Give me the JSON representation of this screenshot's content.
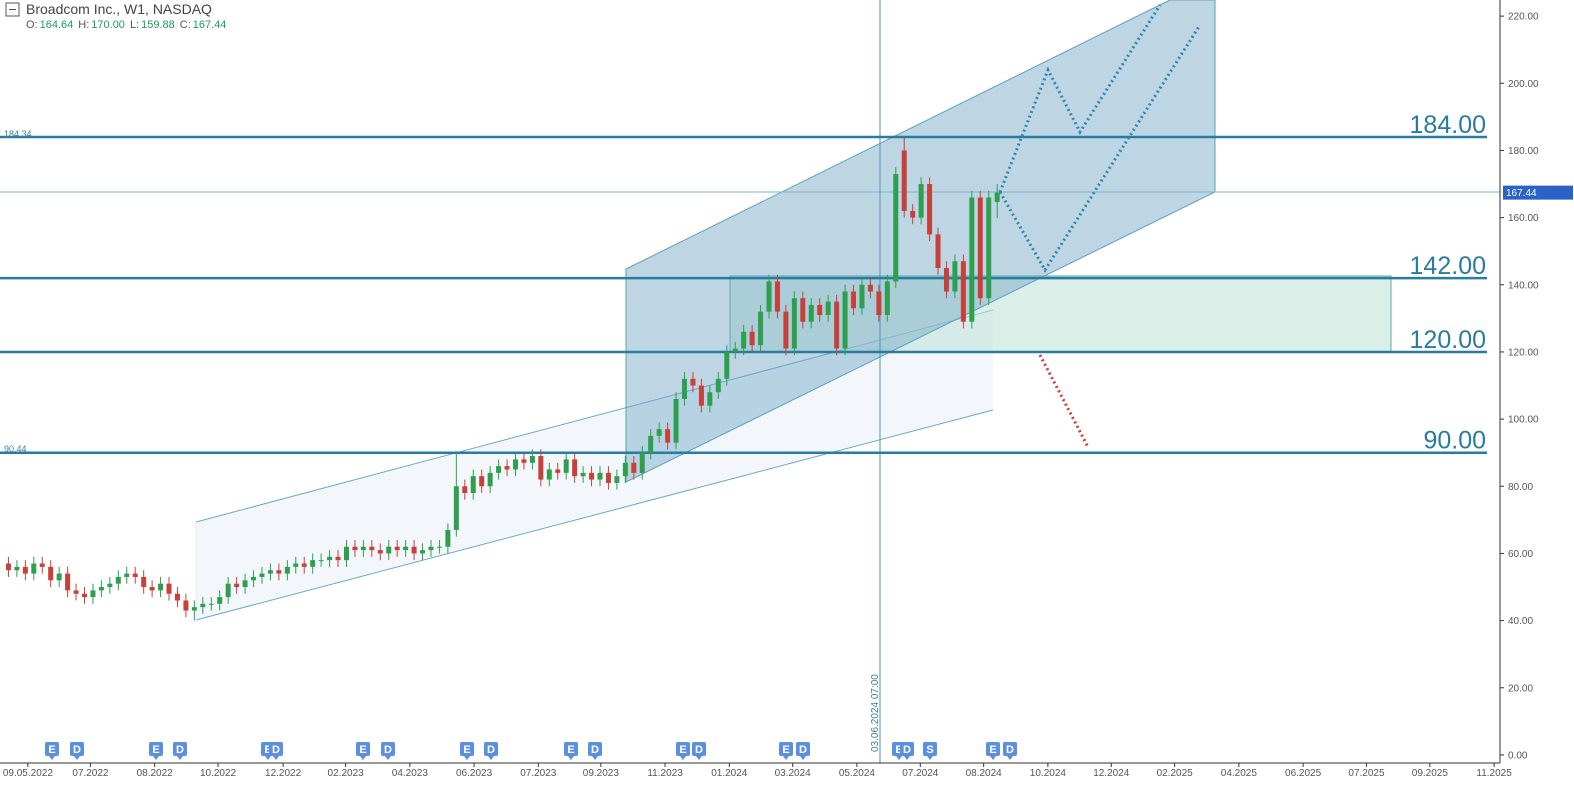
{
  "chart_data": {
    "type": "candlestick",
    "title": "Broadcom Inc., W1, NASDAQ",
    "ohlc_header": [
      {
        "label": "O:",
        "value": "164.64"
      },
      {
        "label": "H:",
        "value": "170.00"
      },
      {
        "label": "L:",
        "value": "159.88"
      },
      {
        "label": "C:",
        "value": "167.44"
      }
    ],
    "open": [
      57,
      55,
      56,
      54,
      57,
      56,
      52,
      54,
      49,
      48,
      47,
      49,
      50,
      51,
      53,
      54,
      53,
      50,
      49,
      51,
      48,
      46,
      43,
      44,
      45,
      45,
      47,
      51,
      50,
      52,
      53,
      54,
      55,
      54,
      56,
      57,
      56,
      58,
      58,
      59,
      58,
      62,
      61,
      62,
      61,
      60,
      62,
      61,
      62,
      60,
      61,
      62,
      62,
      67,
      80,
      78,
      83,
      80,
      84,
      86,
      85,
      88,
      87,
      89,
      82,
      85,
      84,
      88,
      83,
      84,
      82,
      84,
      81,
      83,
      87,
      84,
      90,
      95,
      97,
      93,
      106,
      112,
      110,
      104,
      108,
      112,
      120,
      121,
      126,
      122,
      132,
      141,
      132,
      121,
      136,
      129,
      134,
      131,
      135,
      121,
      138,
      133,
      140,
      138,
      131,
      141,
      180,
      162,
      160,
      170,
      155,
      145,
      138,
      147,
      129,
      166,
      136,
      164.64
    ],
    "high": [
      59,
      58,
      58,
      59,
      59,
      58,
      56,
      56,
      51,
      50,
      51,
      52,
      53,
      55,
      56,
      56,
      55,
      52,
      53,
      53,
      50,
      48,
      46,
      47,
      47,
      49,
      53,
      53,
      54,
      55,
      56,
      57,
      57,
      58,
      59,
      59,
      60,
      60,
      61,
      61,
      64,
      64,
      64,
      64,
      63,
      64,
      64,
      64,
      64,
      63,
      64,
      64,
      69,
      90,
      82,
      85,
      85,
      86,
      88,
      88,
      90,
      90,
      91,
      91,
      87,
      87,
      90,
      90,
      86,
      86,
      86,
      86,
      85,
      89,
      89,
      92,
      97,
      99,
      99,
      108,
      114,
      114,
      112,
      110,
      114,
      122,
      123,
      128,
      128,
      134,
      143,
      143,
      134,
      138,
      138,
      136,
      136,
      137,
      137,
      140,
      140,
      142,
      142,
      140,
      143,
      175,
      184,
      164,
      172,
      172,
      157,
      147,
      149,
      149,
      168,
      168,
      168,
      170
    ],
    "low": [
      53,
      53,
      52,
      52,
      54,
      50,
      50,
      47,
      46,
      45,
      45,
      47,
      48,
      49,
      51,
      51,
      48,
      47,
      47,
      46,
      44,
      41,
      40,
      42,
      43,
      43,
      45,
      48,
      48,
      50,
      51,
      52,
      52,
      52,
      54,
      54,
      54,
      56,
      56,
      56,
      56,
      59,
      59,
      59,
      58,
      58,
      59,
      59,
      58,
      58,
      59,
      60,
      60,
      65,
      76,
      76,
      78,
      78,
      82,
      83,
      83,
      85,
      85,
      80,
      80,
      82,
      82,
      81,
      81,
      80,
      80,
      79,
      79,
      81,
      82,
      82,
      88,
      93,
      91,
      91,
      104,
      108,
      102,
      102,
      106,
      110,
      118,
      119,
      120,
      120,
      130,
      130,
      119,
      119,
      127,
      127,
      129,
      129,
      119,
      119,
      131,
      131,
      136,
      129,
      129,
      139,
      160,
      158,
      158,
      153,
      143,
      136,
      136,
      127,
      127,
      134,
      134,
      159.88
    ],
    "close": [
      55,
      56,
      54,
      57,
      56,
      52,
      54,
      49,
      48,
      47,
      49,
      50,
      51,
      53,
      54,
      53,
      50,
      49,
      51,
      48,
      46,
      43,
      44,
      45,
      45,
      47,
      51,
      50,
      52,
      53,
      54,
      55,
      54,
      56,
      57,
      56,
      58,
      58,
      59,
      58,
      62,
      61,
      62,
      61,
      60,
      62,
      61,
      62,
      60,
      61,
      62,
      62,
      67,
      80,
      78,
      83,
      80,
      84,
      86,
      85,
      88,
      87,
      89,
      82,
      85,
      84,
      88,
      83,
      84,
      82,
      84,
      81,
      83,
      87,
      84,
      90,
      95,
      97,
      93,
      106,
      112,
      110,
      104,
      108,
      112,
      120,
      121,
      126,
      122,
      132,
      141,
      132,
      121,
      136,
      129,
      134,
      131,
      135,
      121,
      138,
      133,
      140,
      138,
      131,
      141,
      173,
      162,
      160,
      170,
      155,
      145,
      138,
      147,
      129,
      166,
      136,
      166,
      167.44
    ],
    "up_color": "#2e9e4f",
    "down_color": "#c8403a",
    "xlim": [
      -1,
      176.5
    ],
    "xticks": [
      {
        "value": 2.3,
        "label": "09.05.2022"
      },
      {
        "value": 9.7,
        "label": "07.2022"
      },
      {
        "value": 17.3,
        "label": "08.2022"
      },
      {
        "value": 24.8,
        "label": "10.2022"
      },
      {
        "value": 32.5,
        "label": "12.2022"
      },
      {
        "value": 39.9,
        "label": "02.2023"
      },
      {
        "value": 47.5,
        "label": "04.2023"
      },
      {
        "value": 55.1,
        "label": "06.2023"
      },
      {
        "value": 62.7,
        "label": "07.2023"
      },
      {
        "value": 70.1,
        "label": "09.2023"
      },
      {
        "value": 77.7,
        "label": "11.2023"
      },
      {
        "value": 85.3,
        "label": "01.2024"
      },
      {
        "value": 92.8,
        "label": "03.2024"
      },
      {
        "value": 100.4,
        "label": "05.2024"
      },
      {
        "value": 107.9,
        "label": "07.2024"
      },
      {
        "value": 115.4,
        "label": "08.2024"
      },
      {
        "value": 123,
        "label": "10.2024"
      },
      {
        "value": 130.5,
        "label": "12.2024"
      },
      {
        "value": 138,
        "label": "02.2025"
      },
      {
        "value": 145.6,
        "label": "04.2025"
      },
      {
        "value": 153.2,
        "label": "06.2025"
      },
      {
        "value": 160.7,
        "label": "07.2025"
      },
      {
        "value": 168.2,
        "label": "09.2025"
      },
      {
        "value": 175.8,
        "label": "11.2025"
      }
    ],
    "ylim": [
      -2.4,
      224.8
    ],
    "yticks": [
      {
        "value": 0,
        "label": "0.00"
      },
      {
        "value": 20,
        "label": "20.00"
      },
      {
        "value": 40,
        "label": "40.00"
      },
      {
        "value": 60,
        "label": "60.00"
      },
      {
        "value": 80,
        "label": "80.00"
      },
      {
        "value": 100,
        "label": "100.00"
      },
      {
        "value": 120,
        "label": "120.00"
      },
      {
        "value": 140,
        "label": "140.00"
      },
      {
        "value": 160,
        "label": "160.00"
      },
      {
        "value": 180,
        "label": "180.00"
      },
      {
        "value": 200,
        "label": "200.00"
      },
      {
        "value": 220,
        "label": "220.00"
      }
    ],
    "levels": [
      {
        "value": 184,
        "label": "184.00"
      },
      {
        "value": 142,
        "label": "142.00"
      },
      {
        "value": 120,
        "label": "120.00"
      },
      {
        "value": 90,
        "label": "90.00"
      }
    ],
    "side_labels": [
      {
        "value": 184.34,
        "label": "184.34"
      },
      {
        "value": 90.44,
        "label": "90.44"
      }
    ],
    "last_price": {
      "value": 167.44,
      "label": "167.44"
    },
    "crosshair_label": "03.06.2024 07:00",
    "events": [
      "E",
      "D",
      "E",
      "D",
      "E",
      "D",
      "E",
      "D",
      "E",
      "D",
      "E",
      "D",
      "E",
      "D",
      "E",
      "D",
      "E",
      "D",
      "S",
      "E",
      "D"
    ]
  }
}
